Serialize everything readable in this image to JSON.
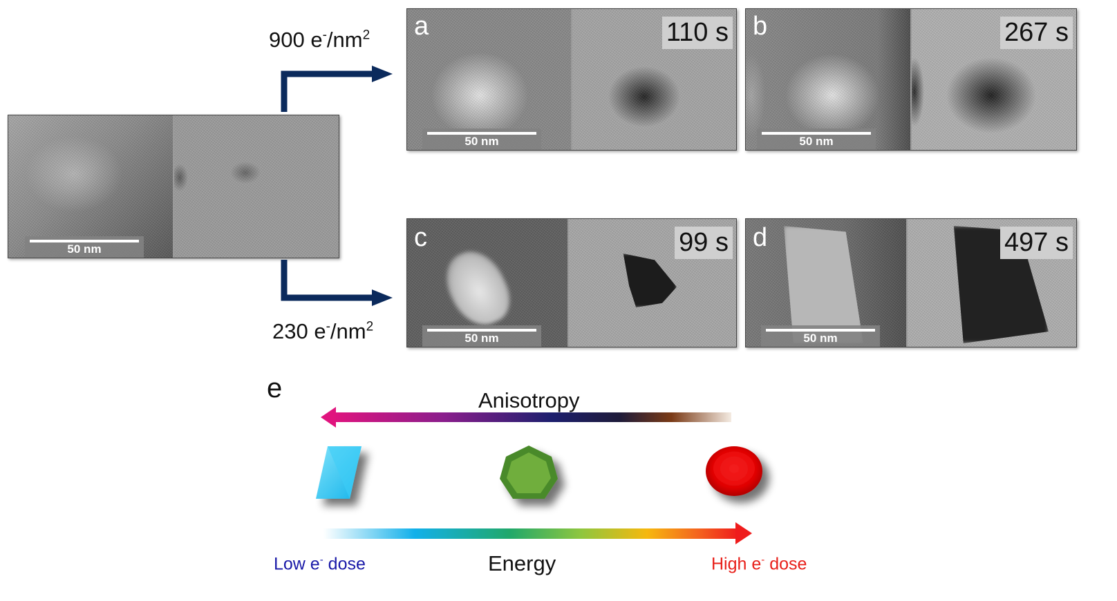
{
  "doses": {
    "top": {
      "value": "900 e",
      "sup1": "-",
      "mid": "/nm",
      "sup2": "2"
    },
    "bottom": {
      "value": "230 e",
      "sup1": "-",
      "mid": "/nm",
      "sup2": "2"
    }
  },
  "scale_bar_label": "50 nm",
  "panels": {
    "a": {
      "letter": "a",
      "time": "110 s"
    },
    "b": {
      "letter": "b",
      "time": "267 s"
    },
    "c": {
      "letter": "c",
      "time": "99 s"
    },
    "d": {
      "letter": "d",
      "time": "497 s"
    }
  },
  "schematic": {
    "panel_letter": "e",
    "anisotropy_label": "Anisotropy",
    "energy_label": "Energy",
    "low_dose": {
      "text": "Low e",
      "sup": "-",
      "rest": " dose"
    },
    "high_dose": {
      "text": "High e",
      "sup": "-",
      "rest": " dose"
    },
    "shapes": [
      "parallelogram",
      "heptagon",
      "ellipse"
    ]
  },
  "colors": {
    "arrow_navy": "#0b2a5c",
    "low_dose_text": "#1a1aa8",
    "high_dose_text": "#e8201a",
    "cyan_shape": "#27c6f0",
    "green_shape": "#4a8a2a",
    "red_shape": "#e10000"
  }
}
